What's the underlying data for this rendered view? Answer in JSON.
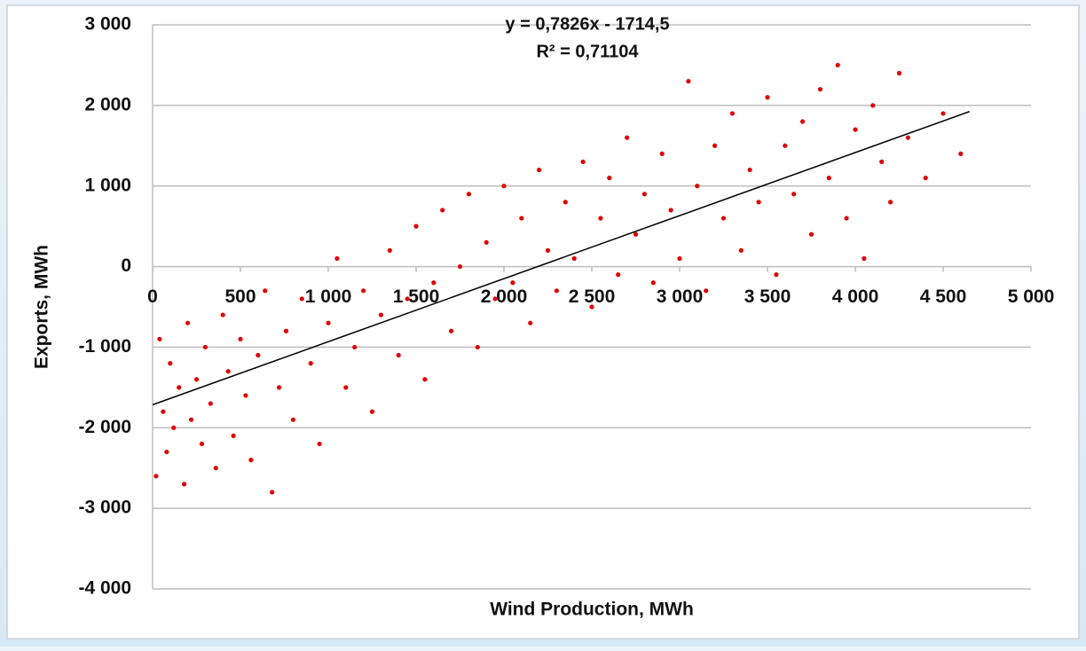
{
  "chart_data": {
    "type": "scatter",
    "annotations": [
      "y = 0,7826x - 1714,5",
      "R² = 0,71104"
    ],
    "x_label": "Wind Production, MWh",
    "y_label": "Exports, MWh",
    "xlim": [
      0,
      5000
    ],
    "ylim": [
      -4000,
      3000
    ],
    "xticks": [
      0,
      500,
      {
        "value": 1000,
        "label": "1 000"
      },
      {
        "value": 1500,
        "label": "1 500"
      },
      {
        "value": 2000,
        "label": "2 000"
      },
      {
        "value": 2500,
        "label": "2 500"
      },
      {
        "value": 3000,
        "label": "3 000"
      },
      {
        "value": 3500,
        "label": "3 500"
      },
      {
        "value": 4000,
        "label": "4 000"
      },
      {
        "value": 4500,
        "label": "4 500"
      },
      {
        "value": 5000,
        "label": "5 000"
      }
    ],
    "yticks": [
      {
        "value": -4000,
        "label": "-4 000"
      },
      {
        "value": -3000,
        "label": "-3 000"
      },
      {
        "value": -2000,
        "label": "-2 000"
      },
      {
        "value": -1000,
        "label": "-1 000"
      },
      0,
      {
        "value": 1000,
        "label": "1 000"
      },
      {
        "value": 2000,
        "label": "2 000"
      },
      {
        "value": 3000,
        "label": "3 000"
      }
    ],
    "grid": true,
    "series": [
      {
        "color": "#e00000",
        "x": [
          20,
          40,
          60,
          80,
          100,
          120,
          150,
          180,
          200,
          220,
          250,
          280,
          300,
          330,
          360,
          400,
          430,
          460,
          500,
          530,
          560,
          600,
          640,
          680,
          720,
          760,
          800,
          850,
          900,
          950,
          1000,
          1050,
          1100,
          1150,
          1200,
          1250,
          1300,
          1350,
          1400,
          1450,
          1500,
          1550,
          1600,
          1650,
          1700,
          1750,
          1800,
          1850,
          1900,
          1950,
          2000,
          2050,
          2100,
          2150,
          2200,
          2250,
          2300,
          2350,
          2400,
          2450,
          2500,
          2550,
          2600,
          2650,
          2700,
          2750,
          2800,
          2850,
          2900,
          2950,
          3000,
          3050,
          3100,
          3150,
          3200,
          3250,
          3300,
          3350,
          3400,
          3450,
          3500,
          3550,
          3600,
          3650,
          3700,
          3750,
          3800,
          3850,
          3900,
          3950,
          4000,
          4050,
          4100,
          4150,
          4200,
          4250,
          4300,
          4400,
          4500,
          4600
        ],
        "values": [
          -2600,
          -900,
          -1800,
          -2300,
          -1200,
          -2000,
          -1500,
          -2700,
          -700,
          -1900,
          -1400,
          -2200,
          -1000,
          -1700,
          -2500,
          -600,
          -1300,
          -2100,
          -900,
          -1600,
          -2400,
          -1100,
          -300,
          -2800,
          -1500,
          -800,
          -1900,
          -400,
          -1200,
          -2200,
          -700,
          100,
          -1500,
          -1000,
          -300,
          -1800,
          -600,
          200,
          -1100,
          -400,
          500,
          -1400,
          -200,
          700,
          -800,
          0,
          900,
          -1000,
          300,
          -400,
          1000,
          -200,
          600,
          -700,
          1200,
          200,
          -300,
          800,
          100,
          1300,
          -500,
          600,
          1100,
          -100,
          1600,
          400,
          900,
          -200,
          1400,
          700,
          100,
          2300,
          1000,
          -300,
          1500,
          600,
          1900,
          200,
          1200,
          800,
          2100,
          -100,
          1500,
          900,
          1800,
          400,
          2200,
          1100,
          2500,
          600,
          1700,
          100,
          2000,
          1300,
          800,
          2400,
          1600,
          1100,
          1900,
          1400
        ]
      }
    ],
    "trendline": {
      "color": "#000000",
      "x": [
        0,
        4650
      ],
      "y": [
        -1715,
        1924
      ]
    }
  }
}
